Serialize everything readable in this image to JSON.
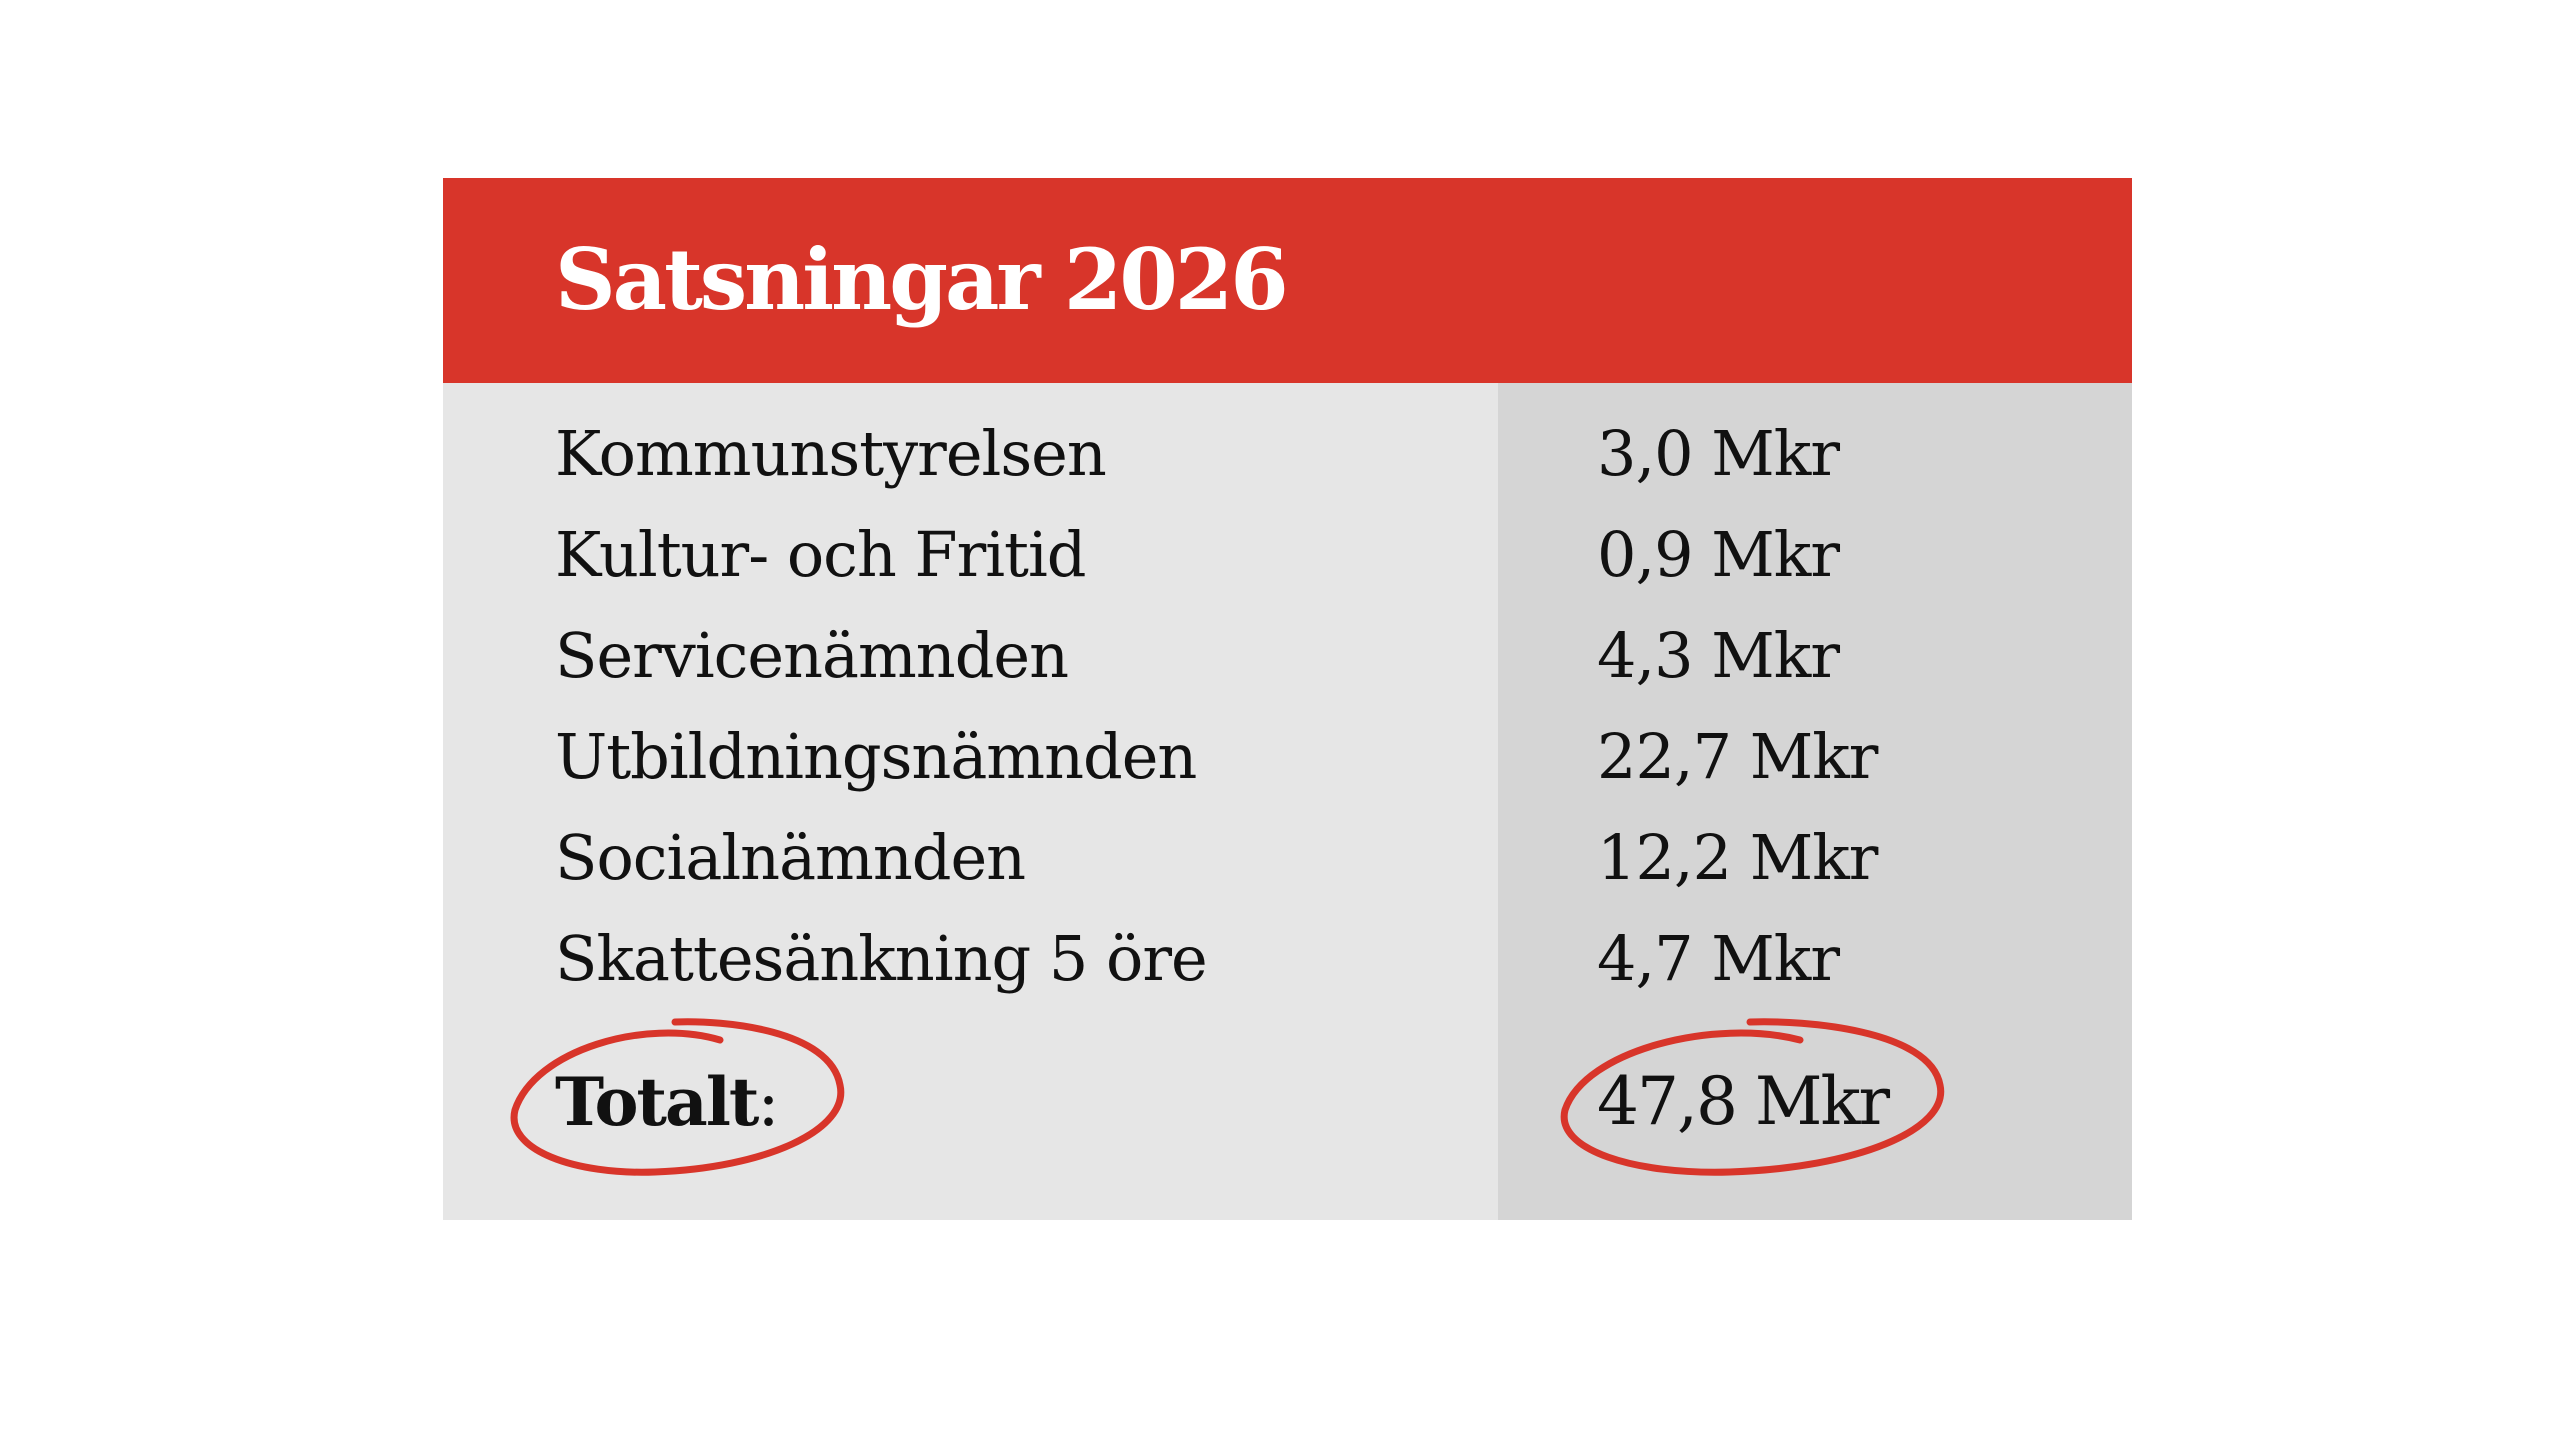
{
  "chart_data": {
    "type": "table",
    "title": "Satsningar 2026",
    "rows": [
      {
        "label": "Kommunstyrelsen",
        "value": "3,0 Mkr"
      },
      {
        "label": "Kultur- och Fritid",
        "value": "0,9 Mkr"
      },
      {
        "label": "Servicenämnden",
        "value": "4,3 Mkr"
      },
      {
        "label": "Utbildningsnämnden",
        "value": "22,7 Mkr"
      },
      {
        "label": "Socialnämnden",
        "value": "12,2 Mkr"
      },
      {
        "label": "Skattesänkning 5 öre",
        "value": "4,7 Mkr"
      }
    ],
    "total": {
      "label": "Totalt",
      "colon": ":",
      "value": "47,8 Mkr"
    },
    "colors": {
      "header": "#d8352a",
      "left_column": "#e6e6e6",
      "right_column": "#d5d5d5",
      "circle": "#d8352a",
      "text": "#111111",
      "title_text": "#ffffff"
    }
  }
}
